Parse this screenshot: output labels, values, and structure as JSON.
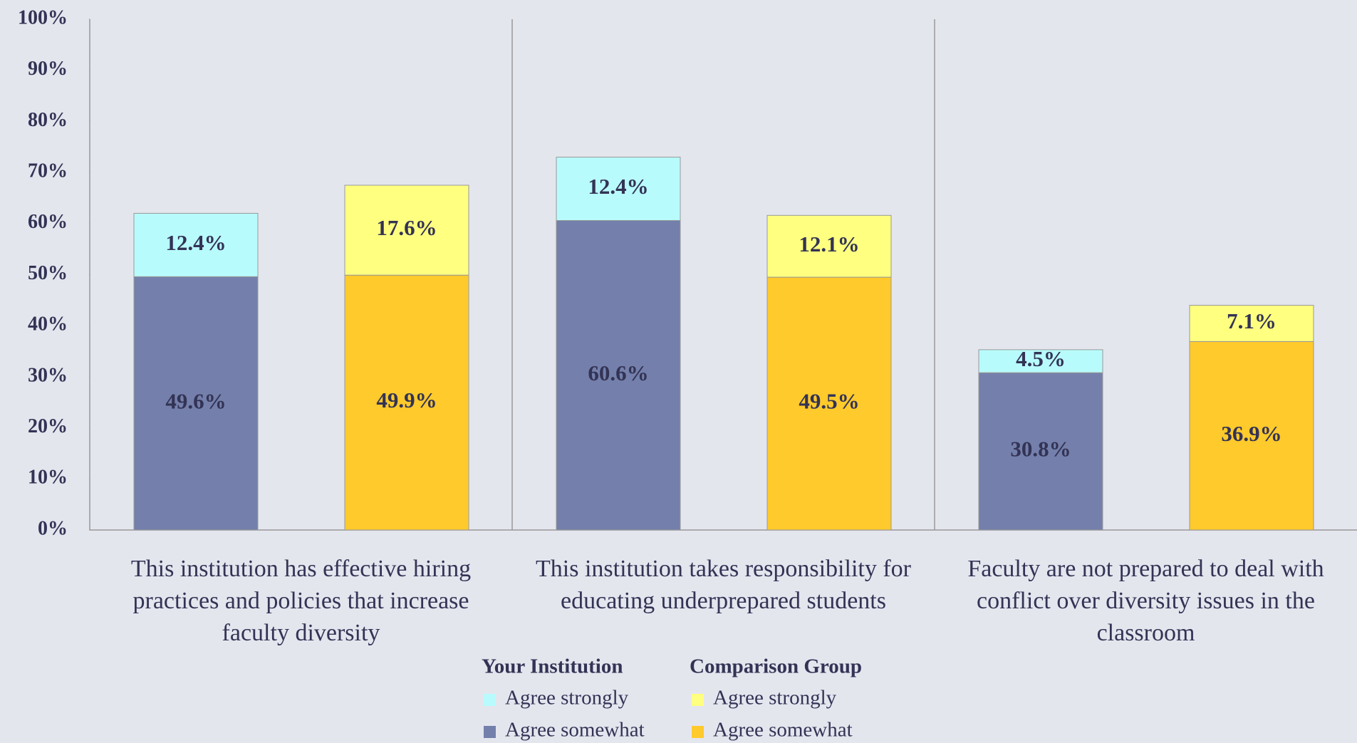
{
  "chart_data": {
    "type": "bar",
    "stacked": true,
    "categories": [
      "This institution has effective hiring practices and policies that increase faculty diversity",
      "This institution takes responsibility for educating underprepared students",
      "Faculty are not prepared to deal with conflict over diversity issues in the classroom"
    ],
    "ylim": [
      0,
      100
    ],
    "yticks": [
      {
        "value": 0,
        "label": "0%"
      },
      {
        "value": 10,
        "label": "10%"
      },
      {
        "value": 20,
        "label": "20%"
      },
      {
        "value": 30,
        "label": "30%"
      },
      {
        "value": 40,
        "label": "40%"
      },
      {
        "value": 50,
        "label": "50%"
      },
      {
        "value": 60,
        "label": "60%"
      },
      {
        "value": 70,
        "label": "70%"
      },
      {
        "value": 80,
        "label": "80%"
      },
      {
        "value": 90,
        "label": "90%"
      },
      {
        "value": 100,
        "label": "100%"
      }
    ],
    "groups": [
      {
        "name": "Your Institution",
        "series": [
          {
            "name": "Agree strongly",
            "color": "#b8fbfc",
            "values": [
              12.4,
              12.4,
              4.5
            ],
            "value_labels": [
              "12.4%",
              "12.4%",
              "4.5%"
            ]
          },
          {
            "name": "Agree somewhat",
            "color": "#7480ab",
            "values": [
              49.6,
              60.6,
              30.8
            ],
            "value_labels": [
              "49.6%",
              "60.6%",
              "30.8%"
            ]
          }
        ]
      },
      {
        "name": "Comparison Group",
        "series": [
          {
            "name": "Agree strongly",
            "color": "#ffff80",
            "values": [
              17.6,
              12.1,
              7.1
            ],
            "value_labels": [
              "17.6%",
              "12.1%",
              "7.1%"
            ]
          },
          {
            "name": "Agree somewhat",
            "color": "#ffca2b",
            "values": [
              49.9,
              49.5,
              36.9
            ],
            "value_labels": [
              "49.9%",
              "49.5%",
              "36.9%"
            ]
          }
        ]
      }
    ]
  }
}
